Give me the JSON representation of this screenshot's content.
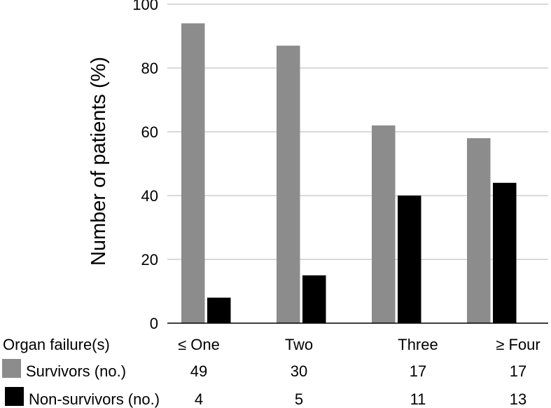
{
  "chart_data": {
    "type": "bar",
    "title": "",
    "ylabel": "Number of patients (%)",
    "ylim": [
      0,
      100
    ],
    "yticks": [
      0,
      20,
      40,
      60,
      80,
      100
    ],
    "grid": true,
    "categories": [
      "≤ One",
      "Two",
      "Three",
      "≥ Four"
    ],
    "category_header": "Organ failure(s)",
    "series": [
      {
        "name": "Survivors (no.)",
        "color": "#8c8c8c",
        "values": [
          94,
          87,
          62,
          58
        ],
        "counts": [
          "49",
          "30",
          "17",
          "17"
        ]
      },
      {
        "name": "Non-survivors (no.)",
        "color": "#000000",
        "values": [
          8,
          15,
          40,
          44
        ],
        "counts": [
          "4",
          "5",
          "11",
          "13"
        ]
      }
    ]
  }
}
